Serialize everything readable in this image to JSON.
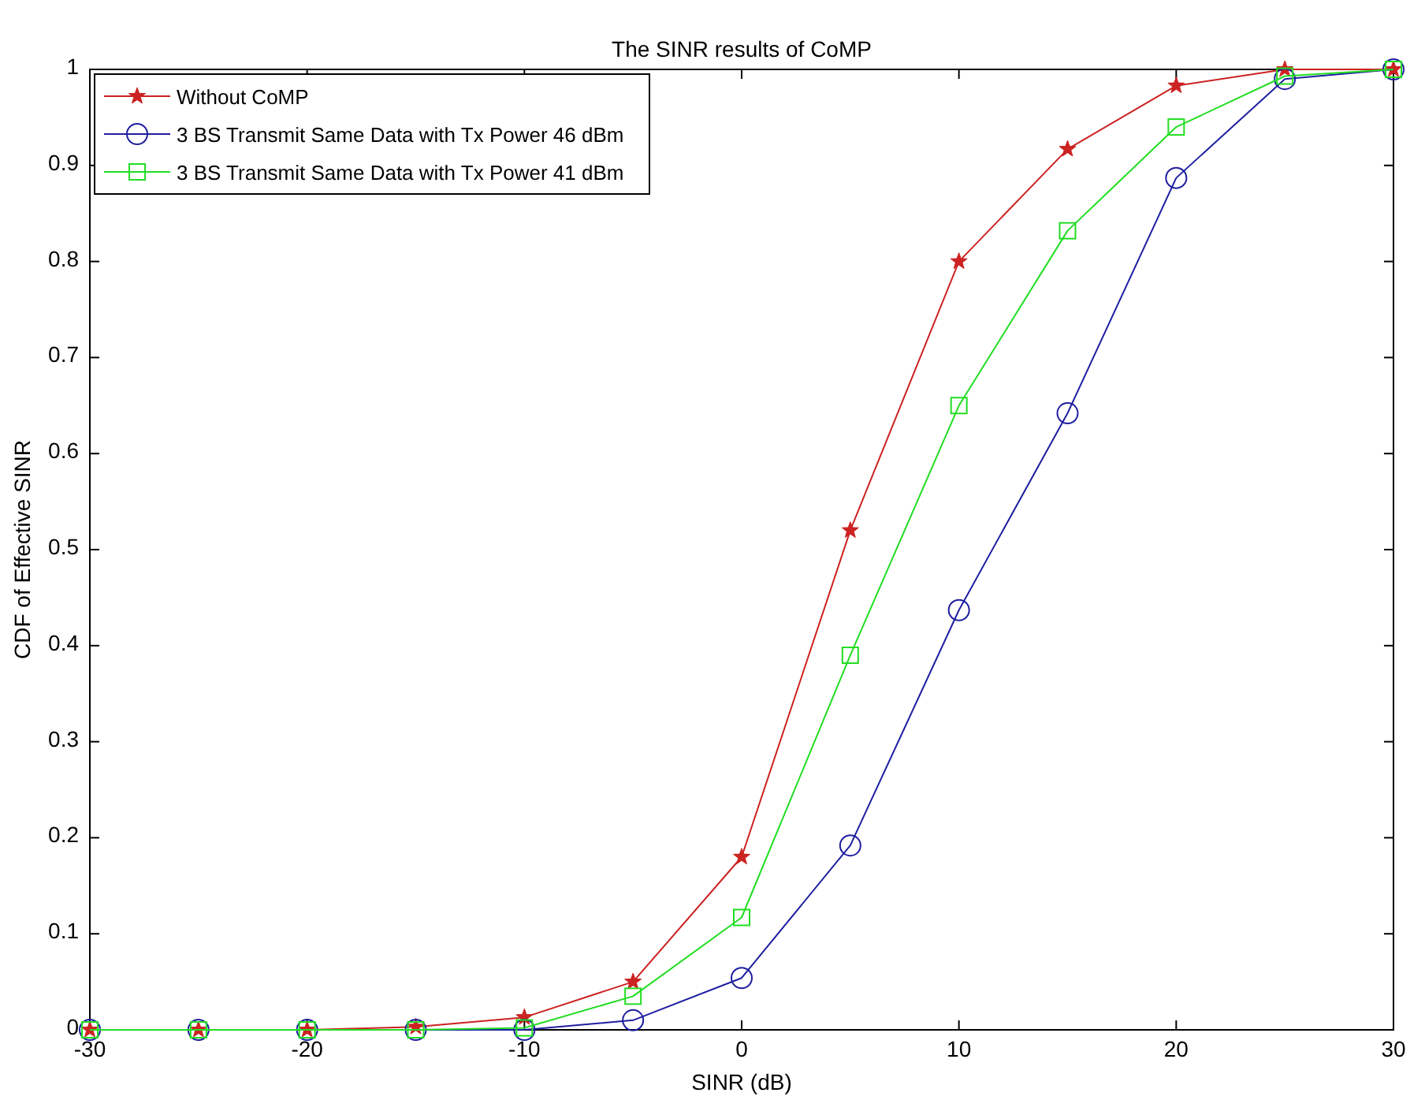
{
  "chart_data": {
    "type": "line",
    "title": "The SINR results of CoMP",
    "xlabel": "SINR (dB)",
    "ylabel": "CDF of Effective SINR",
    "x": [
      -30,
      -25,
      -20,
      -15,
      -10,
      -5,
      0,
      5,
      10,
      15,
      20,
      25,
      30
    ],
    "series": [
      {
        "name": "Without CoMP",
        "color": "#cc2222",
        "marker": "star",
        "values": [
          0,
          0,
          0,
          0.003,
          0.013,
          0.05,
          0.18,
          0.52,
          0.8,
          0.917,
          0.983,
          1,
          1
        ]
      },
      {
        "name": "3 BS Transmit Same Data with Tx Power 46 dBm",
        "color": "#1f1fa0",
        "marker": "circle",
        "values": [
          0,
          0,
          0,
          0,
          0,
          0.01,
          0.054,
          0.192,
          0.437,
          0.642,
          0.887,
          0.99,
          1
        ]
      },
      {
        "name": "3 BS Transmit Same Data with Tx Power 41 dBm",
        "color": "#22dd22",
        "marker": "square",
        "values": [
          0,
          0,
          0,
          0,
          0.002,
          0.035,
          0.117,
          0.39,
          0.65,
          0.832,
          0.94,
          0.993,
          1
        ]
      }
    ],
    "xlim": [
      -30,
      30
    ],
    "xticks": [
      -30,
      -20,
      -10,
      0,
      10,
      20,
      30
    ],
    "ylim": [
      0,
      1
    ],
    "yticks": [
      0,
      0.1,
      0.2,
      0.3,
      0.4,
      0.5,
      0.6,
      0.7,
      0.8,
      0.9,
      1
    ],
    "grid": false,
    "legend": "top left",
    "line_style": "solid"
  }
}
